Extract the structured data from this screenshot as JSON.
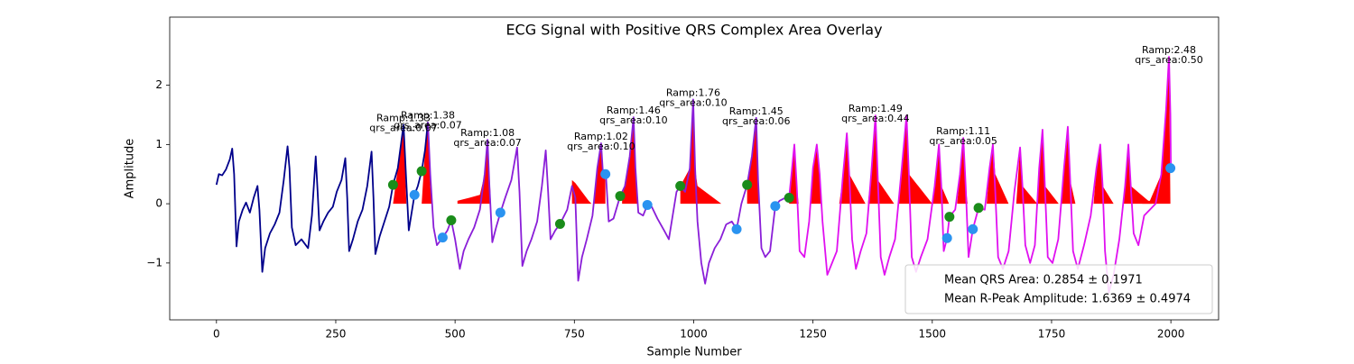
{
  "chart_data": {
    "type": "line",
    "title": "ECG Signal with Positive QRS Complex Area Overlay",
    "x_label": "Sample Number",
    "y_label": "Amplitude",
    "xlim": [
      -98,
      2100
    ],
    "ylim": [
      -1.96,
      3.15
    ],
    "xticks": [
      0,
      250,
      500,
      750,
      1000,
      1250,
      1500,
      1750,
      2000
    ],
    "yticks": [
      {
        "value": -1,
        "label": "−1"
      },
      0,
      1,
      2
    ],
    "grid": false,
    "series": [
      {
        "color": "#00008b",
        "x": [
          0,
          5,
          12,
          20,
          28,
          33,
          37,
          42,
          47,
          55,
          62,
          70,
          78,
          86,
          90,
          96,
          102,
          112,
          122,
          132,
          141,
          149,
          153,
          158,
          166,
          178,
          192,
          200,
          208,
          212,
          216,
          224,
          234,
          244,
          252,
          262,
          270,
          274,
          278,
          286,
          296,
          306,
          316,
          325,
          329,
          333,
          342,
          352,
          362,
          370,
          380,
          392,
          397,
          403,
          410,
          415,
          422,
          430,
          437,
          443
        ],
        "values": [
          0.32,
          0.5,
          0.48,
          0.58,
          0.75,
          0.93,
          0.5,
          -0.72,
          -0.3,
          -0.1,
          0.02,
          -0.15,
          0.1,
          0.3,
          -0.1,
          -1.15,
          -0.75,
          -0.5,
          -0.35,
          -0.15,
          0.4,
          0.97,
          0.6,
          -0.4,
          -0.7,
          -0.6,
          -0.75,
          -0.2,
          0.8,
          0.2,
          -0.45,
          -0.3,
          -0.15,
          -0.05,
          0.2,
          0.4,
          0.77,
          0.1,
          -0.8,
          -0.6,
          -0.3,
          -0.1,
          0.3,
          0.88,
          0.1,
          -0.85,
          -0.55,
          -0.3,
          -0.05,
          0.32,
          0.6,
          1.33,
          0.5,
          -0.45,
          -0.1,
          0.15,
          0.3,
          0.55,
          0.9,
          1.38
        ]
      },
      {
        "color": "#8a1ed8",
        "x": [
          443,
          448,
          455,
          462,
          474,
          484,
          492,
          500,
          510,
          518,
          528,
          540,
          552,
          562,
          568,
          572,
          578,
          586,
          595,
          605,
          618,
          630,
          635,
          641,
          650,
          660,
          672,
          682,
          690,
          695,
          700,
          710,
          720,
          735,
          745,
          752,
          758,
          766,
          776,
          788,
          798,
          806,
          810,
          816,
          822,
          832,
          846,
          856,
          866,
          874,
          878,
          884,
          894,
          903,
          912,
          924,
          938,
          948,
          956,
          964,
          972,
          982,
          992,
          999,
          1003,
          1008,
          1016,
          1024,
          1032,
          1044,
          1056,
          1068,
          1080,
          1090,
          1100,
          1112,
          1122,
          1131,
          1135,
          1142,
          1150,
          1160,
          1171,
          1180,
          1192,
          1200
        ],
        "values": [
          1.38,
          0.5,
          -0.4,
          -0.7,
          -0.57,
          -0.45,
          -0.28,
          -0.6,
          -1.1,
          -0.8,
          -0.6,
          -0.4,
          -0.1,
          0.5,
          1.08,
          0.3,
          -0.65,
          -0.4,
          -0.15,
          0.1,
          0.4,
          0.95,
          0.2,
          -1.05,
          -0.8,
          -0.6,
          -0.3,
          0.3,
          0.9,
          0.2,
          -0.6,
          -0.45,
          -0.34,
          -0.1,
          0.3,
          0.1,
          -1.3,
          -0.9,
          -0.6,
          -0.2,
          0.6,
          1.02,
          0.5,
          0.5,
          -0.3,
          -0.25,
          0.13,
          0.3,
          0.8,
          1.46,
          0.6,
          -0.15,
          -0.2,
          -0.02,
          -0.05,
          -0.25,
          -0.45,
          -0.6,
          -0.2,
          0.2,
          0.3,
          0.2,
          0.6,
          1.76,
          0.6,
          -0.3,
          -1.0,
          -1.35,
          -1.0,
          -0.75,
          -0.6,
          -0.35,
          -0.3,
          -0.43,
          0.0,
          0.32,
          0.8,
          1.45,
          0.4,
          -0.75,
          -0.9,
          -0.8,
          -0.04,
          0.05,
          0.1,
          0.1
        ]
      },
      {
        "color": "#e010f0",
        "x": [
          1200,
          1211,
          1216,
          1222,
          1232,
          1242,
          1250,
          1258,
          1264,
          1270,
          1280,
          1290,
          1300,
          1312,
          1321,
          1326,
          1332,
          1340,
          1350,
          1362,
          1372,
          1381,
          1386,
          1392,
          1400,
          1410,
          1422,
          1436,
          1446,
          1451,
          1457,
          1466,
          1476,
          1490,
          1505,
          1514,
          1519,
          1524,
          1531,
          1536,
          1548,
          1558,
          1565,
          1570,
          1576,
          1585,
          1597,
          1610,
          1620,
          1627,
          1632,
          1638,
          1648,
          1660,
          1672,
          1684,
          1689,
          1695,
          1705,
          1715,
          1724,
          1731,
          1736,
          1742,
          1752,
          1764,
          1776,
          1784,
          1789,
          1795,
          1805,
          1818,
          1832,
          1844,
          1852,
          1857,
          1862,
          1870,
          1880,
          1892,
          1904,
          1911,
          1916,
          1922,
          1932,
          1944,
          1956,
          1968,
          1980,
          1990,
          1996,
          1999,
          2000
        ],
        "values": [
          0.1,
          1.0,
          0.3,
          -0.8,
          -0.9,
          -0.3,
          0.6,
          1.0,
          0.5,
          -0.3,
          -1.2,
          -1.0,
          -0.8,
          0.4,
          1.19,
          0.5,
          -0.6,
          -1.1,
          -0.8,
          -0.5,
          0.5,
          1.49,
          0.4,
          -0.9,
          -1.2,
          -0.9,
          -0.6,
          0.6,
          1.49,
          0.5,
          -0.9,
          -1.15,
          -0.9,
          -0.6,
          0.3,
          1.0,
          0.3,
          -0.8,
          -0.58,
          -0.22,
          -0.1,
          0.5,
          1.11,
          0.3,
          -0.9,
          -0.43,
          -0.07,
          -0.1,
          0.6,
          1.0,
          0.2,
          -0.9,
          -1.1,
          -0.8,
          0.2,
          0.95,
          0.3,
          -0.7,
          -1.0,
          -0.7,
          0.6,
          1.25,
          0.3,
          -0.9,
          -1.0,
          -0.6,
          0.6,
          1.3,
          0.4,
          -0.8,
          -1.1,
          -0.7,
          -0.2,
          0.6,
          1.0,
          0.3,
          -0.8,
          -1.5,
          -1.2,
          -0.6,
          0.3,
          1.0,
          0.3,
          -0.5,
          -0.7,
          -0.2,
          -0.1,
          0.0,
          0.5,
          1.6,
          2.48,
          1.5,
          0.6
        ]
      }
    ],
    "area_color": "#ff0000",
    "areas": [
      {
        "x": [
          370,
          380,
          392,
          398,
          415
        ],
        "values": [
          0,
          0.6,
          1.33,
          0,
          0
        ]
      },
      {
        "x": [
          430,
          437,
          443,
          448,
          452
        ],
        "values": [
          0,
          0.9,
          1.38,
          0.3,
          0
        ]
      },
      {
        "x": [
          505,
          530,
          552,
          562,
          568,
          574,
          575
        ],
        "values": [
          0.05,
          0.1,
          0.15,
          0.5,
          1.08,
          0.2,
          0
        ]
      },
      {
        "x": [
          745,
          752,
          780,
          786
        ],
        "values": [
          0.4,
          0.35,
          0.05,
          0
        ]
      },
      {
        "x": [
          790,
          798,
          806,
          810,
          815
        ],
        "values": [
          0,
          0.6,
          1.02,
          0.5,
          0.4
        ]
      },
      {
        "x": [
          850,
          866,
          874,
          878,
          884
        ],
        "values": [
          0.1,
          0.8,
          1.46,
          0.6,
          0
        ]
      },
      {
        "x": [
          972,
          992,
          999,
          1003,
          1008,
          1058
        ],
        "values": [
          0.3,
          0.6,
          1.76,
          0.6,
          0.3,
          0
        ]
      },
      {
        "x": [
          1112,
          1122,
          1131,
          1135,
          1138
        ],
        "values": [
          0.32,
          0.8,
          1.45,
          0.4,
          0
        ]
      },
      {
        "x": [
          1200,
          1211,
          1216,
          1220
        ],
        "values": [
          0.1,
          1.0,
          0.3,
          0
        ]
      },
      {
        "x": [
          1245,
          1250,
          1258,
          1264,
          1268
        ],
        "values": [
          0,
          0.6,
          1.0,
          0.5,
          0
        ]
      },
      {
        "x": [
          1305,
          1312,
          1321,
          1326,
          1360
        ],
        "values": [
          0,
          0.4,
          1.19,
          0.5,
          0
        ]
      },
      {
        "x": [
          1365,
          1372,
          1381,
          1386,
          1420
        ],
        "values": [
          0,
          0.5,
          1.49,
          0.4,
          0
        ]
      },
      {
        "x": [
          1428,
          1436,
          1446,
          1451,
          1500
        ],
        "values": [
          0,
          0.6,
          1.49,
          0.5,
          0
        ]
      },
      {
        "x": [
          1500,
          1505,
          1514,
          1519,
          1535
        ],
        "values": [
          0,
          0.3,
          1.0,
          0.3,
          0
        ]
      },
      {
        "x": [
          1552,
          1558,
          1565,
          1570,
          1574
        ],
        "values": [
          0,
          0.5,
          1.11,
          0.3,
          0
        ]
      },
      {
        "x": [
          1614,
          1620,
          1627,
          1632,
          1660
        ],
        "values": [
          0,
          0.6,
          1.0,
          0.5,
          0
        ]
      },
      {
        "x": [
          1676,
          1684,
          1689,
          1720
        ],
        "values": [
          0,
          0.95,
          0.3,
          0
        ]
      },
      {
        "x": [
          1720,
          1724,
          1731,
          1736,
          1765
        ],
        "values": [
          0,
          0.6,
          1.25,
          0.3,
          0
        ]
      },
      {
        "x": [
          1770,
          1776,
          1784,
          1789,
          1800
        ],
        "values": [
          0,
          0.6,
          1.3,
          0.4,
          0
        ]
      },
      {
        "x": [
          1838,
          1844,
          1852,
          1857,
          1880
        ],
        "values": [
          0,
          0.6,
          1.0,
          0.3,
          0
        ]
      },
      {
        "x": [
          1900,
          1911,
          1916,
          1960
        ],
        "values": [
          0,
          1.0,
          0.3,
          0
        ]
      },
      {
        "x": [
          1940,
          1956,
          1980,
          1990,
          1996,
          1999
        ],
        "values": [
          0.05,
          0.05,
          0.5,
          1.6,
          2.48,
          0
        ]
      }
    ],
    "onsets": {
      "color": "#1a8c1a",
      "x": [
        370,
        430,
        492,
        720,
        846,
        972,
        1112,
        1200,
        1536,
        1597
      ],
      "values": [
        0.32,
        0.55,
        -0.28,
        -0.34,
        0.13,
        0.3,
        0.32,
        0.1,
        -0.22,
        -0.07
      ]
    },
    "offsets": {
      "color": "#2a93f0",
      "x": [
        415,
        474,
        595,
        815,
        903,
        1090,
        1171,
        1531,
        1585,
        1999
      ],
      "values": [
        0.15,
        -0.57,
        -0.15,
        0.5,
        -0.02,
        -0.43,
        -0.04,
        -0.58,
        -0.43,
        0.6
      ]
    },
    "annotations": [
      {
        "x": 392,
        "y": 1.33,
        "text": [
          "Ramp:1.33",
          "qrs_area:0.07"
        ]
      },
      {
        "x": 443,
        "y": 1.38,
        "text": [
          "Ramp:1.38",
          "qrs_area:0.07"
        ]
      },
      {
        "x": 568,
        "y": 1.08,
        "text": [
          "Ramp:1.08",
          "qrs_area:0.07"
        ]
      },
      {
        "x": 806,
        "y": 1.02,
        "text": [
          "Ramp:1.02",
          "qrs_area:0.10"
        ]
      },
      {
        "x": 874,
        "y": 1.46,
        "text": [
          "Ramp:1.46",
          "qrs_area:0.10"
        ]
      },
      {
        "x": 999,
        "y": 1.76,
        "text": [
          "Ramp:1.76",
          "qrs_area:0.10"
        ]
      },
      {
        "x": 1131,
        "y": 1.45,
        "text": [
          "Ramp:1.45",
          "qrs_area:0.06"
        ]
      },
      {
        "x": 1381,
        "y": 1.49,
        "text": [
          "Ramp:1.49",
          "qrs_area:0.44"
        ]
      },
      {
        "x": 1565,
        "y": 1.11,
        "text": [
          "Ramp:1.11",
          "qrs_area:0.05"
        ]
      },
      {
        "x": 1996,
        "y": 2.48,
        "text": [
          "Ramp:2.48",
          "qrs_area:0.50"
        ]
      }
    ],
    "legend": {
      "loc": "lower right",
      "entries": [
        "Mean QRS Area: 0.2854 ± 0.1971",
        "Mean R-Peak Amplitude: 1.6369 ± 0.4974"
      ]
    }
  }
}
